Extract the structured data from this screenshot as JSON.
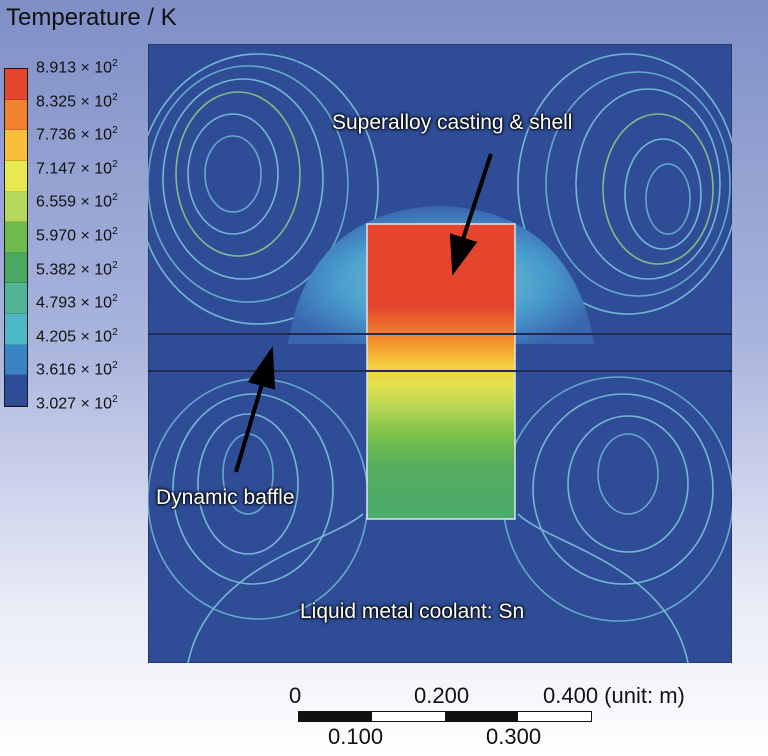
{
  "legend": {
    "title": "Temperature / K",
    "ticks": [
      "8.913",
      "8.325",
      "7.736",
      "7.147",
      "6.559",
      "5.970",
      "5.382",
      "4.793",
      "4.205",
      "3.616",
      "3.027"
    ],
    "multiplier": " × 10",
    "exponent": "2",
    "colors": [
      "#e4452c",
      "#f5822f",
      "#f7bf3a",
      "#e9e852",
      "#b5d85a",
      "#6dbb4c",
      "#4aa864",
      "#52b494",
      "#4cb7c6",
      "#3a83c2",
      "#2f4d96"
    ]
  },
  "annotations": {
    "casting": "Superalloy casting & shell",
    "baffle": "Dynamic baffle",
    "coolant": "Liquid metal coolant: Sn"
  },
  "scale_bar": {
    "top_labels": [
      "0",
      "0.200",
      "0.400 (unit: m)"
    ],
    "bottom_labels": [
      "0.100",
      "0.300"
    ],
    "colors": [
      "#111111",
      "#ffffff",
      "#111111",
      "#ffffff"
    ]
  },
  "colors": {
    "background_field": "#2f4d96",
    "streamline": "#7fc9e0"
  }
}
